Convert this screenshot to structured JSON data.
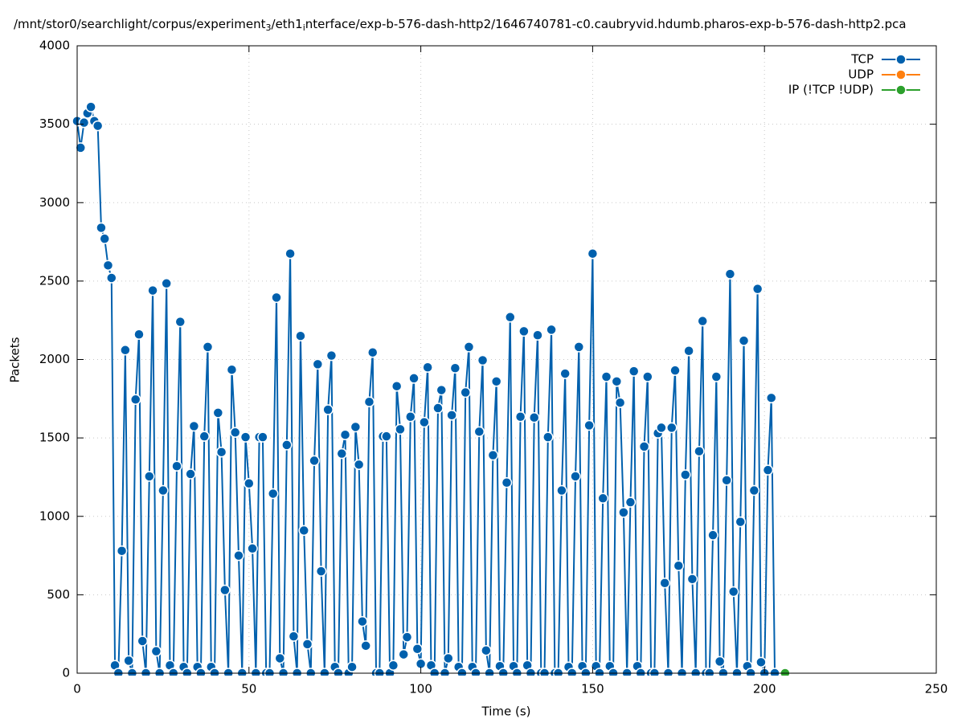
{
  "chart_data": {
    "type": "line",
    "title": [
      "/mnt/stor0/searchlight/corpus/experiment",
      "3",
      "/eth1",
      "i",
      "nterface/exp-b-576-dash-http2/1646740781-c0.caubryvid.hdumb.pharos-exp-b-576-dash-http2.pca"
    ],
    "xlabel": "Time (s)",
    "ylabel": "Packets",
    "xlim": [
      0,
      250
    ],
    "xticks": [
      0,
      50,
      100,
      150,
      200,
      250
    ],
    "ylim": [
      0,
      4000
    ],
    "yticks": [
      0,
      500,
      1000,
      1500,
      2000,
      2500,
      3000,
      3500,
      4000
    ],
    "grid": true,
    "legend": "top-right",
    "series": [
      {
        "name": "TCP",
        "color": "#0060ad",
        "x": [
          0,
          1,
          2,
          3,
          4,
          5,
          6,
          7,
          8,
          9,
          10,
          11,
          12,
          13,
          14,
          15,
          16,
          17,
          18,
          19,
          20,
          21,
          22,
          23,
          24,
          25,
          26,
          27,
          28,
          29,
          30,
          31,
          32,
          33,
          34,
          35,
          36,
          37,
          38,
          39,
          40,
          41,
          42,
          43,
          44,
          45,
          46,
          47,
          48,
          49,
          50,
          51,
          52,
          53,
          54,
          55,
          56,
          57,
          58,
          59,
          60,
          61,
          62,
          63,
          64,
          65,
          66,
          67,
          68,
          69,
          70,
          71,
          72,
          73,
          74,
          75,
          76,
          77,
          78,
          79,
          80,
          81,
          82,
          83,
          84,
          85,
          86,
          87,
          88,
          89,
          90,
          91,
          92,
          93,
          94,
          95,
          96,
          97,
          98,
          99,
          100,
          101,
          102,
          103,
          104,
          105,
          106,
          107,
          108,
          109,
          110,
          111,
          112,
          113,
          114,
          115,
          116,
          117,
          118,
          119,
          120,
          121,
          122,
          123,
          124,
          125,
          126,
          127,
          128,
          129,
          130,
          131,
          132,
          133,
          134,
          135,
          136,
          137,
          138,
          139,
          140,
          141,
          142,
          143,
          144,
          145,
          146,
          147,
          148,
          149,
          150,
          151,
          152,
          153,
          154,
          155,
          156,
          157,
          158,
          159,
          160,
          161,
          162,
          163,
          164,
          165,
          166,
          167,
          168,
          169,
          170,
          171,
          172,
          173,
          174,
          175,
          176,
          177,
          178,
          179,
          180,
          181,
          182,
          183,
          184,
          185,
          186,
          187,
          188,
          189,
          190,
          191,
          192,
          193,
          194,
          195,
          196,
          197,
          198,
          199,
          200,
          201,
          202,
          203
        ],
        "values": [
          3520,
          3350,
          3510,
          3570,
          3610,
          3520,
          3490,
          2840,
          2770,
          2600,
          2520,
          50,
          0,
          780,
          2060,
          80,
          0,
          1745,
          2160,
          205,
          0,
          1255,
          2440,
          140,
          0,
          1165,
          2485,
          50,
          0,
          1320,
          2240,
          40,
          0,
          1270,
          1575,
          40,
          0,
          1510,
          2080,
          40,
          0,
          1660,
          1410,
          530,
          0,
          1935,
          1535,
          750,
          0,
          1505,
          1210,
          795,
          0,
          1505,
          1505,
          0,
          0,
          1145,
          2395,
          95,
          0,
          1455,
          2675,
          235,
          0,
          2150,
          910,
          185,
          0,
          1355,
          1970,
          650,
          0,
          1680,
          2025,
          40,
          0,
          1400,
          1520,
          0,
          40,
          1570,
          1330,
          330,
          175,
          1730,
          2045,
          0,
          0,
          1510,
          1510,
          0,
          50,
          1830,
          1555,
          120,
          230,
          1635,
          1880,
          155,
          60,
          1600,
          1950,
          50,
          0,
          1690,
          1805,
          0,
          95,
          1645,
          1945,
          40,
          0,
          1790,
          2080,
          40,
          0,
          1540,
          1995,
          145,
          0,
          1390,
          1860,
          45,
          0,
          1215,
          2270,
          45,
          0,
          1635,
          2180,
          50,
          0,
          1630,
          2155,
          0,
          0,
          1505,
          2190,
          0,
          0,
          1165,
          1910,
          40,
          0,
          1255,
          2080,
          45,
          0,
          1580,
          2675,
          45,
          0,
          1115,
          1890,
          45,
          0,
          1860,
          1725,
          1025,
          0,
          1090,
          1925,
          45,
          0,
          1445,
          1890,
          0,
          0,
          1530,
          1565,
          575,
          0,
          1565,
          1930,
          685,
          0,
          1265,
          2055,
          600,
          0,
          1415,
          2245,
          0,
          0,
          880,
          1890,
          75,
          0,
          1230,
          2545,
          520,
          0,
          965,
          2120,
          45,
          0,
          1165,
          2450,
          70,
          0,
          1295,
          1755,
          0
        ]
      },
      {
        "name": "UDP",
        "color": "#ff7f0e",
        "x": [],
        "values": []
      },
      {
        "name": "IP (!TCP  !UDP)",
        "color": "#2ca02c",
        "x": [
          206
        ],
        "values": [
          0
        ]
      }
    ]
  }
}
